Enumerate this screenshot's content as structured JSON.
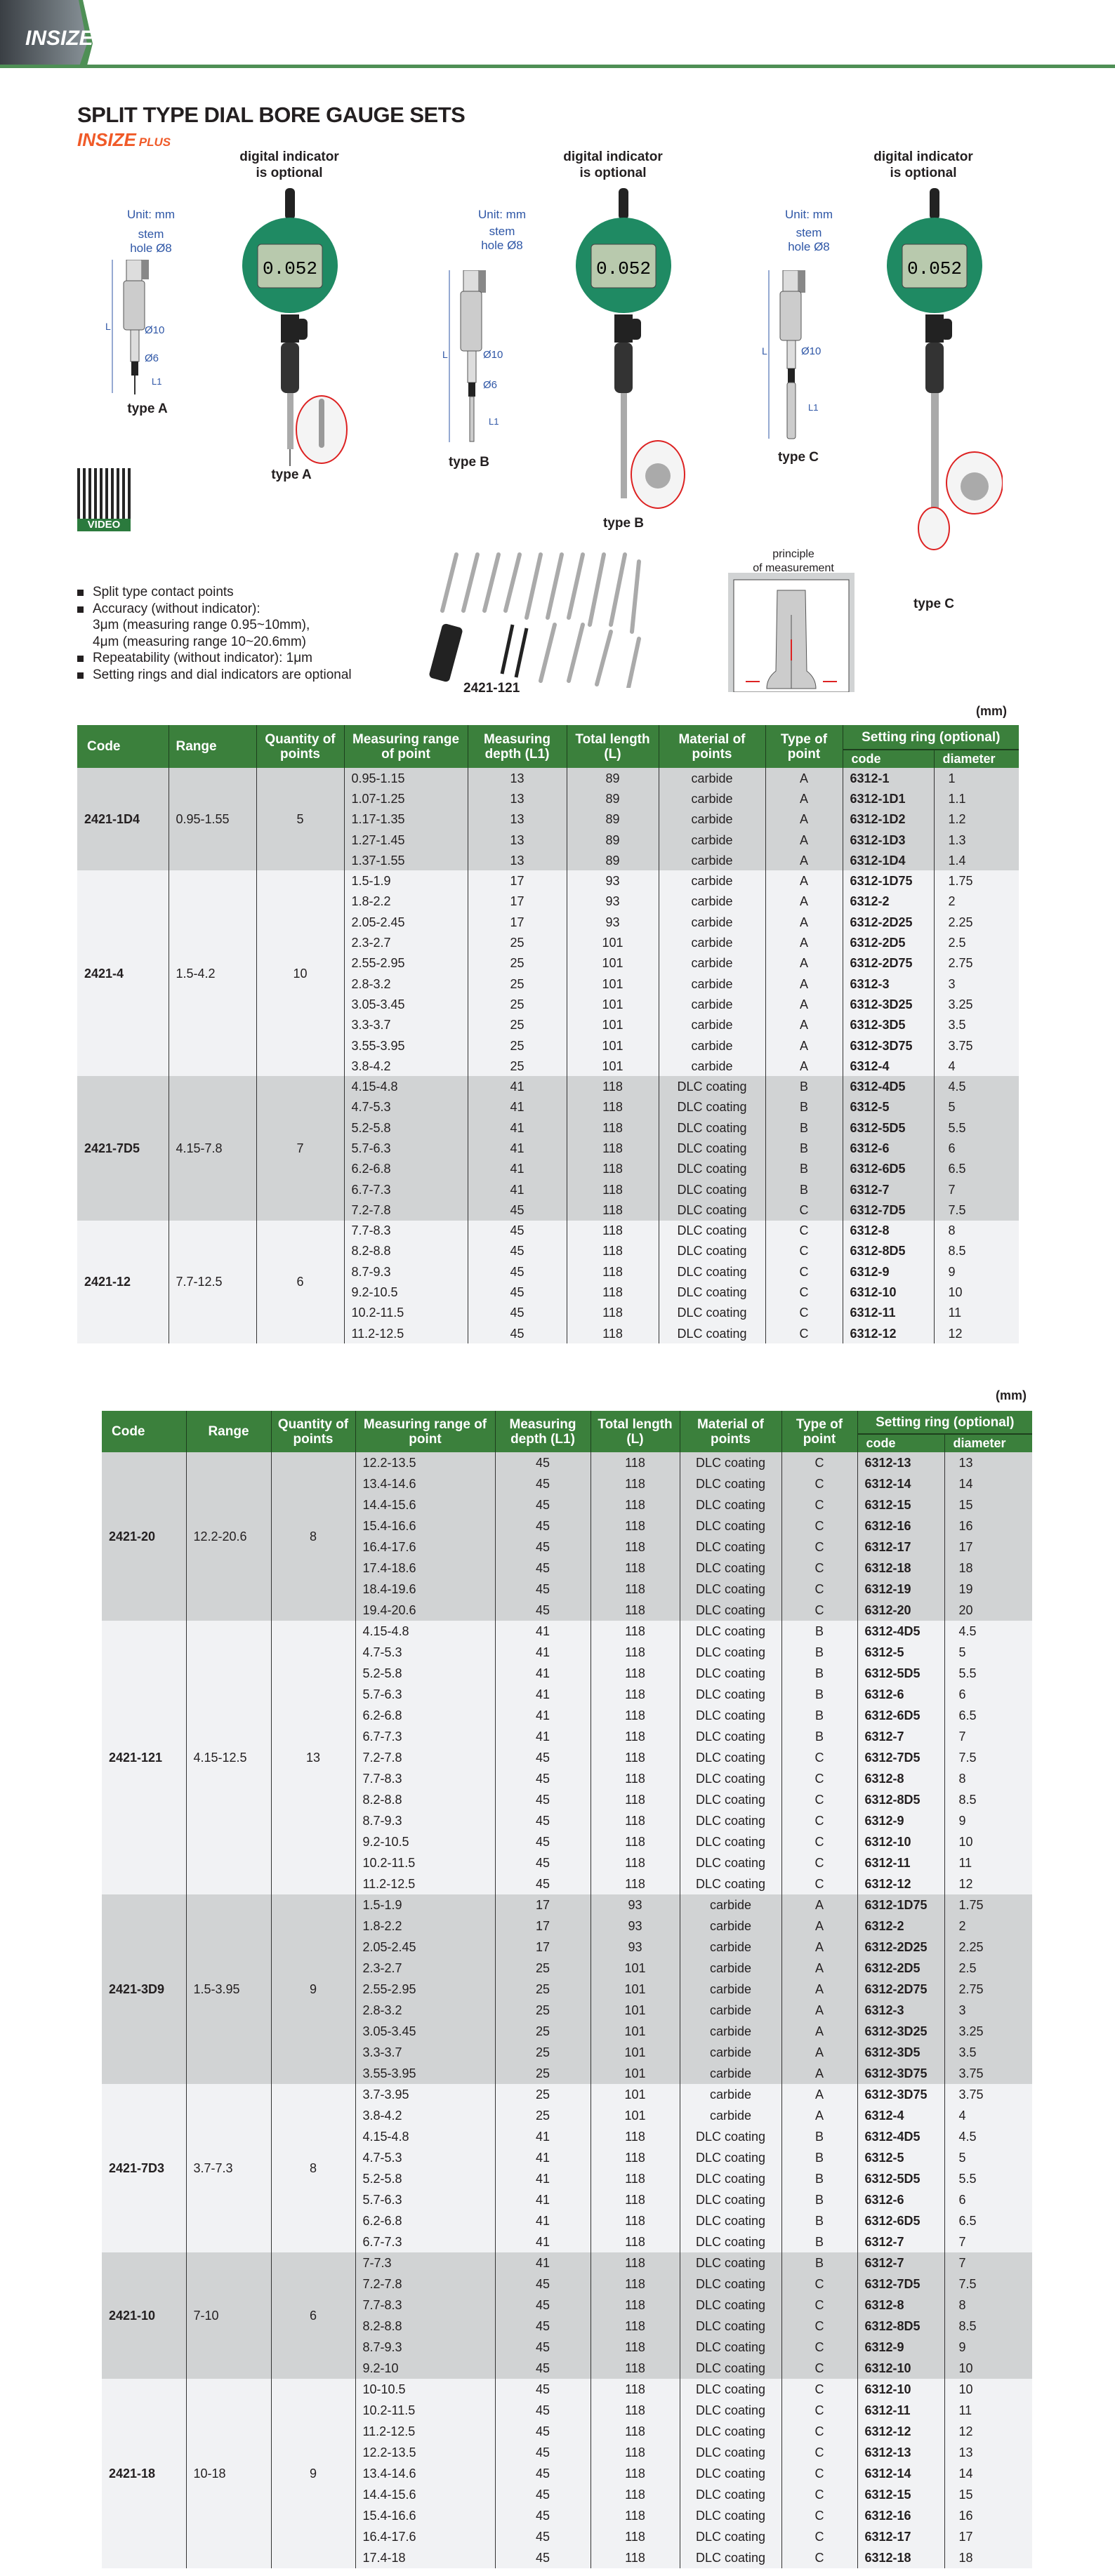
{
  "brand": {
    "logo": "INSIZE",
    "sub_logo": "INSIZE",
    "sub_logo_suffix": "PLUS",
    "accent": "#4e8f55",
    "plus_color": "#f05a28"
  },
  "title": "SPLIT TYPE DIAL BORE GAUGE SETS",
  "figures": {
    "indicator_note_line1": "digital indicator",
    "indicator_note_line2": "is optional",
    "unit": "Unit: mm",
    "stem_line1": "stem",
    "stem_line2": "hole Ø8",
    "dim_10": "Ø10",
    "dim_6": "Ø6",
    "dim_L": "L",
    "dim_L1": "L1",
    "type_a": "type A",
    "type_b": "type B",
    "type_c": "type C",
    "lcd_value": "0.052",
    "video": "VIDEO",
    "set_label": "2421-121",
    "principle_line1": "principle",
    "principle_line2": "of measurement"
  },
  "features": [
    "Split type contact points",
    "Accuracy (without indicator):",
    "3μm (measuring range 0.95~10mm),",
    "4μm (measuring range 10~20.6mm)",
    "Repeatability (without indicator): 1μm",
    "Setting rings and dial indicators are optional"
  ],
  "table_headers": {
    "unit": "(mm)",
    "code": "Code",
    "range": "Range",
    "qty": "Quantity of points",
    "meas_range1": "Measuring range of point",
    "meas_range2": "Measuring range of point",
    "depth": "Measuring depth (L1)",
    "length": "Total length (L)",
    "material": "Material of points",
    "type": "Type of point",
    "ring": "Setting ring (optional)",
    "ring_code": "code",
    "ring_dia": "diameter"
  },
  "table1": [
    {
      "code": "2421-1D4",
      "range": "0.95-1.55",
      "qty": "5",
      "rows": [
        [
          "0.95-1.15",
          "13",
          "89",
          "carbide",
          "A",
          "6312-1",
          "1"
        ],
        [
          "1.07-1.25",
          "13",
          "89",
          "carbide",
          "A",
          "6312-1D1",
          "1.1"
        ],
        [
          "1.17-1.35",
          "13",
          "89",
          "carbide",
          "A",
          "6312-1D2",
          "1.2"
        ],
        [
          "1.27-1.45",
          "13",
          "89",
          "carbide",
          "A",
          "6312-1D3",
          "1.3"
        ],
        [
          "1.37-1.55",
          "13",
          "89",
          "carbide",
          "A",
          "6312-1D4",
          "1.4"
        ]
      ]
    },
    {
      "code": "2421-4",
      "range": "1.5-4.2",
      "qty": "10",
      "rows": [
        [
          "1.5-1.9",
          "17",
          "93",
          "carbide",
          "A",
          "6312-1D75",
          "1.75"
        ],
        [
          "1.8-2.2",
          "17",
          "93",
          "carbide",
          "A",
          "6312-2",
          "2"
        ],
        [
          "2.05-2.45",
          "17",
          "93",
          "carbide",
          "A",
          "6312-2D25",
          "2.25"
        ],
        [
          "2.3-2.7",
          "25",
          "101",
          "carbide",
          "A",
          "6312-2D5",
          "2.5"
        ],
        [
          "2.55-2.95",
          "25",
          "101",
          "carbide",
          "A",
          "6312-2D75",
          "2.75"
        ],
        [
          "2.8-3.2",
          "25",
          "101",
          "carbide",
          "A",
          "6312-3",
          "3"
        ],
        [
          "3.05-3.45",
          "25",
          "101",
          "carbide",
          "A",
          "6312-3D25",
          "3.25"
        ],
        [
          "3.3-3.7",
          "25",
          "101",
          "carbide",
          "A",
          "6312-3D5",
          "3.5"
        ],
        [
          "3.55-3.95",
          "25",
          "101",
          "carbide",
          "A",
          "6312-3D75",
          "3.75"
        ],
        [
          "3.8-4.2",
          "25",
          "101",
          "carbide",
          "A",
          "6312-4",
          "4"
        ]
      ]
    },
    {
      "code": "2421-7D5",
      "range": "4.15-7.8",
      "qty": "7",
      "rows": [
        [
          "4.15-4.8",
          "41",
          "118",
          "DLC coating",
          "B",
          "6312-4D5",
          "4.5"
        ],
        [
          "4.7-5.3",
          "41",
          "118",
          "DLC coating",
          "B",
          "6312-5",
          "5"
        ],
        [
          "5.2-5.8",
          "41",
          "118",
          "DLC coating",
          "B",
          "6312-5D5",
          "5.5"
        ],
        [
          "5.7-6.3",
          "41",
          "118",
          "DLC coating",
          "B",
          "6312-6",
          "6"
        ],
        [
          "6.2-6.8",
          "41",
          "118",
          "DLC coating",
          "B",
          "6312-6D5",
          "6.5"
        ],
        [
          "6.7-7.3",
          "41",
          "118",
          "DLC coating",
          "B",
          "6312-7",
          "7"
        ],
        [
          "7.2-7.8",
          "45",
          "118",
          "DLC coating",
          "C",
          "6312-7D5",
          "7.5"
        ]
      ]
    },
    {
      "code": "2421-12",
      "range": "7.7-12.5",
      "qty": "6",
      "rows": [
        [
          "7.7-8.3",
          "45",
          "118",
          "DLC coating",
          "C",
          "6312-8",
          "8"
        ],
        [
          "8.2-8.8",
          "45",
          "118",
          "DLC coating",
          "C",
          "6312-8D5",
          "8.5"
        ],
        [
          "8.7-9.3",
          "45",
          "118",
          "DLC coating",
          "C",
          "6312-9",
          "9"
        ],
        [
          "9.2-10.5",
          "45",
          "118",
          "DLC coating",
          "C",
          "6312-10",
          "10"
        ],
        [
          "10.2-11.5",
          "45",
          "118",
          "DLC coating",
          "C",
          "6312-11",
          "11"
        ],
        [
          "11.2-12.5",
          "45",
          "118",
          "DLC coating",
          "C",
          "6312-12",
          "12"
        ]
      ]
    }
  ],
  "table2": [
    {
      "code": "2421-20",
      "range": "12.2-20.6",
      "qty": "8",
      "rows": [
        [
          "12.2-13.5",
          "45",
          "118",
          "DLC coating",
          "C",
          "6312-13",
          "13"
        ],
        [
          "13.4-14.6",
          "45",
          "118",
          "DLC coating",
          "C",
          "6312-14",
          "14"
        ],
        [
          "14.4-15.6",
          "45",
          "118",
          "DLC coating",
          "C",
          "6312-15",
          "15"
        ],
        [
          "15.4-16.6",
          "45",
          "118",
          "DLC coating",
          "C",
          "6312-16",
          "16"
        ],
        [
          "16.4-17.6",
          "45",
          "118",
          "DLC coating",
          "C",
          "6312-17",
          "17"
        ],
        [
          "17.4-18.6",
          "45",
          "118",
          "DLC coating",
          "C",
          "6312-18",
          "18"
        ],
        [
          "18.4-19.6",
          "45",
          "118",
          "DLC coating",
          "C",
          "6312-19",
          "19"
        ],
        [
          "19.4-20.6",
          "45",
          "118",
          "DLC coating",
          "C",
          "6312-20",
          "20"
        ]
      ]
    },
    {
      "code": "2421-121",
      "range": "4.15-12.5",
      "qty": "13",
      "rows": [
        [
          "4.15-4.8",
          "41",
          "118",
          "DLC coating",
          "B",
          "6312-4D5",
          "4.5"
        ],
        [
          "4.7-5.3",
          "41",
          "118",
          "DLC coating",
          "B",
          "6312-5",
          "5"
        ],
        [
          "5.2-5.8",
          "41",
          "118",
          "DLC coating",
          "B",
          "6312-5D5",
          "5.5"
        ],
        [
          "5.7-6.3",
          "41",
          "118",
          "DLC coating",
          "B",
          "6312-6",
          "6"
        ],
        [
          "6.2-6.8",
          "41",
          "118",
          "DLC coating",
          "B",
          "6312-6D5",
          "6.5"
        ],
        [
          "6.7-7.3",
          "41",
          "118",
          "DLC coating",
          "B",
          "6312-7",
          "7"
        ],
        [
          "7.2-7.8",
          "45",
          "118",
          "DLC coating",
          "C",
          "6312-7D5",
          "7.5"
        ],
        [
          "7.7-8.3",
          "45",
          "118",
          "DLC coating",
          "C",
          "6312-8",
          "8"
        ],
        [
          "8.2-8.8",
          "45",
          "118",
          "DLC coating",
          "C",
          "6312-8D5",
          "8.5"
        ],
        [
          "8.7-9.3",
          "45",
          "118",
          "DLC coating",
          "C",
          "6312-9",
          "9"
        ],
        [
          "9.2-10.5",
          "45",
          "118",
          "DLC coating",
          "C",
          "6312-10",
          "10"
        ],
        [
          "10.2-11.5",
          "45",
          "118",
          "DLC coating",
          "C",
          "6312-11",
          "11"
        ],
        [
          "11.2-12.5",
          "45",
          "118",
          "DLC coating",
          "C",
          "6312-12",
          "12"
        ]
      ]
    },
    {
      "code": "2421-3D9",
      "range": "1.5-3.95",
      "qty": "9",
      "rows": [
        [
          "1.5-1.9",
          "17",
          "93",
          "carbide",
          "A",
          "6312-1D75",
          "1.75"
        ],
        [
          "1.8-2.2",
          "17",
          "93",
          "carbide",
          "A",
          "6312-2",
          "2"
        ],
        [
          "2.05-2.45",
          "17",
          "93",
          "carbide",
          "A",
          "6312-2D25",
          "2.25"
        ],
        [
          "2.3-2.7",
          "25",
          "101",
          "carbide",
          "A",
          "6312-2D5",
          "2.5"
        ],
        [
          "2.55-2.95",
          "25",
          "101",
          "carbide",
          "A",
          "6312-2D75",
          "2.75"
        ],
        [
          "2.8-3.2",
          "25",
          "101",
          "carbide",
          "A",
          "6312-3",
          "3"
        ],
        [
          "3.05-3.45",
          "25",
          "101",
          "carbide",
          "A",
          "6312-3D25",
          "3.25"
        ],
        [
          "3.3-3.7",
          "25",
          "101",
          "carbide",
          "A",
          "6312-3D5",
          "3.5"
        ],
        [
          "3.55-3.95",
          "25",
          "101",
          "carbide",
          "A",
          "6312-3D75",
          "3.75"
        ]
      ]
    },
    {
      "code": "2421-7D3",
      "range": "3.7-7.3",
      "qty": "8",
      "rows": [
        [
          "3.7-3.95",
          "25",
          "101",
          "carbide",
          "A",
          "6312-3D75",
          "3.75"
        ],
        [
          "3.8-4.2",
          "25",
          "101",
          "carbide",
          "A",
          "6312-4",
          "4"
        ],
        [
          "4.15-4.8",
          "41",
          "118",
          "DLC coating",
          "B",
          "6312-4D5",
          "4.5"
        ],
        [
          "4.7-5.3",
          "41",
          "118",
          "DLC coating",
          "B",
          "6312-5",
          "5"
        ],
        [
          "5.2-5.8",
          "41",
          "118",
          "DLC coating",
          "B",
          "6312-5D5",
          "5.5"
        ],
        [
          "5.7-6.3",
          "41",
          "118",
          "DLC coating",
          "B",
          "6312-6",
          "6"
        ],
        [
          "6.2-6.8",
          "41",
          "118",
          "DLC coating",
          "B",
          "6312-6D5",
          "6.5"
        ],
        [
          "6.7-7.3",
          "41",
          "118",
          "DLC coating",
          "B",
          "6312-7",
          "7"
        ]
      ]
    },
    {
      "code": "2421-10",
      "range": "7-10",
      "qty": "6",
      "rows": [
        [
          "7-7.3",
          "41",
          "118",
          "DLC coating",
          "B",
          "6312-7",
          "7"
        ],
        [
          "7.2-7.8",
          "45",
          "118",
          "DLC coating",
          "C",
          "6312-7D5",
          "7.5"
        ],
        [
          "7.7-8.3",
          "45",
          "118",
          "DLC coating",
          "C",
          "6312-8",
          "8"
        ],
        [
          "8.2-8.8",
          "45",
          "118",
          "DLC coating",
          "C",
          "6312-8D5",
          "8.5"
        ],
        [
          "8.7-9.3",
          "45",
          "118",
          "DLC coating",
          "C",
          "6312-9",
          "9"
        ],
        [
          "9.2-10",
          "45",
          "118",
          "DLC coating",
          "C",
          "6312-10",
          "10"
        ]
      ]
    },
    {
      "code": "2421-18",
      "range": "10-18",
      "qty": "9",
      "rows": [
        [
          "10-10.5",
          "45",
          "118",
          "DLC coating",
          "C",
          "6312-10",
          "10"
        ],
        [
          "10.2-11.5",
          "45",
          "118",
          "DLC coating",
          "C",
          "6312-11",
          "11"
        ],
        [
          "11.2-12.5",
          "45",
          "118",
          "DLC coating",
          "C",
          "6312-12",
          "12"
        ],
        [
          "12.2-13.5",
          "45",
          "118",
          "DLC coating",
          "C",
          "6312-13",
          "13"
        ],
        [
          "13.4-14.6",
          "45",
          "118",
          "DLC coating",
          "C",
          "6312-14",
          "14"
        ],
        [
          "14.4-15.6",
          "45",
          "118",
          "DLC coating",
          "C",
          "6312-15",
          "15"
        ],
        [
          "15.4-16.6",
          "45",
          "118",
          "DLC coating",
          "C",
          "6312-16",
          "16"
        ],
        [
          "16.4-17.6",
          "45",
          "118",
          "DLC coating",
          "C",
          "6312-17",
          "17"
        ],
        [
          "17.4-18",
          "45",
          "118",
          "DLC coating",
          "C",
          "6312-18",
          "18"
        ]
      ]
    }
  ]
}
